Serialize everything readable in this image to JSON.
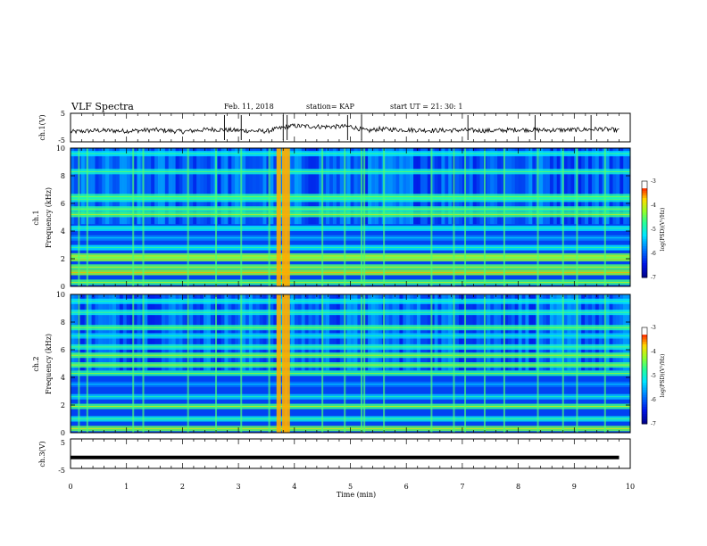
{
  "header": {
    "title": "VLF Spectra",
    "date": "Feb. 11, 2018",
    "station": "station= KAP",
    "start": "start  UT =   21: 30: 1"
  },
  "colors": {
    "low": "#00007f",
    "mid_low": "#0050ff",
    "mid": "#00e5ff",
    "mid_high": "#30ff60",
    "high": "#ffe000",
    "max": "#e00000",
    "top": "#ffffff"
  },
  "chart_data": [
    {
      "type": "line",
      "panel": "ch1-waveform",
      "ylabel": "ch.1(V)",
      "ylim": [
        -5,
        5
      ],
      "yticks": [
        "5",
        "-5"
      ],
      "x": [
        0,
        0.5,
        1,
        1.5,
        2,
        2.5,
        3,
        3.5,
        3.9,
        4,
        4.5,
        5,
        5.3,
        5.5,
        6,
        6.5,
        7,
        7.5,
        8,
        8.5,
        9,
        9.5,
        9.8
      ],
      "values": [
        -1.5,
        -1.0,
        -1.2,
        -0.8,
        -1.4,
        -0.6,
        -1.0,
        -1.3,
        0.5,
        0.6,
        0.3,
        0.4,
        -1.2,
        -0.5,
        -0.8,
        -1.0,
        -0.9,
        -1.1,
        -0.7,
        -0.9,
        -0.8,
        -0.5,
        -1.0
      ],
      "xlim": [
        0,
        10
      ]
    },
    {
      "type": "heatmap",
      "panel": "ch1-spectrogram",
      "ylabel": "ch.1\nFrequency  (kHz)",
      "ylim": [
        0,
        10
      ],
      "xlim": [
        0,
        10
      ],
      "yticks": [
        "0",
        "2",
        "4",
        "6",
        "8",
        "10"
      ],
      "colorbar": {
        "label": "log(PSD)(V²/Hz)",
        "range": [
          -7,
          -3
        ],
        "ticks": [
          "-3",
          "-4",
          "-5",
          "-6",
          "-7"
        ]
      },
      "bands_khz": [
        {
          "f": 0.3,
          "level": 0.6
        },
        {
          "f": 1.0,
          "level": 0.7
        },
        {
          "f": 1.4,
          "level": 0.62
        },
        {
          "f": 2.0,
          "level": 0.68
        },
        {
          "f": 2.2,
          "level": 0.65
        },
        {
          "f": 2.8,
          "level": 0.45
        },
        {
          "f": 3.5,
          "level": 0.32
        },
        {
          "f": 4.2,
          "level": 0.45
        },
        {
          "f": 5.2,
          "level": 0.6
        },
        {
          "f": 5.6,
          "level": 0.55
        },
        {
          "f": 6.3,
          "level": 0.5
        },
        {
          "f": 6.5,
          "level": 0.55
        },
        {
          "f": 8.3,
          "level": 0.5
        },
        {
          "f": 9.6,
          "level": 0.45
        }
      ],
      "burst_minutes": [
        0.15,
        0.3,
        1.12,
        1.3,
        2.1,
        2.6,
        3.05,
        3.55,
        3.72,
        3.82,
        3.88,
        4.5,
        4.9,
        5.2,
        5.25,
        5.6,
        6.45,
        6.85,
        7.05,
        7.4,
        7.75,
        8.35,
        8.8,
        9.05,
        9.55
      ]
    },
    {
      "type": "heatmap",
      "panel": "ch2-spectrogram",
      "ylabel": "ch.2\nFrequency  (kHz)",
      "ylim": [
        0,
        10
      ],
      "xlim": [
        0,
        10
      ],
      "yticks": [
        "0",
        "2",
        "4",
        "6",
        "8",
        "10"
      ],
      "colorbar": {
        "label": "log(PSD)(V²/Hz)",
        "range": [
          -7,
          -3
        ],
        "ticks": [
          "-3",
          "-4",
          "-5",
          "-6",
          "-7"
        ]
      },
      "bands_khz": [
        {
          "f": 0.3,
          "level": 0.65
        },
        {
          "f": 1.0,
          "level": 0.48
        },
        {
          "f": 1.9,
          "level": 0.6
        },
        {
          "f": 2.6,
          "level": 0.4
        },
        {
          "f": 3.5,
          "level": 0.3
        },
        {
          "f": 4.3,
          "level": 0.55
        },
        {
          "f": 4.9,
          "level": 0.6
        },
        {
          "f": 5.6,
          "level": 0.6
        },
        {
          "f": 6.2,
          "level": 0.5
        },
        {
          "f": 7.0,
          "level": 0.42
        },
        {
          "f": 7.6,
          "level": 0.55
        },
        {
          "f": 8.7,
          "level": 0.48
        },
        {
          "f": 9.5,
          "level": 0.45
        }
      ],
      "burst_minutes": [
        0.15,
        0.3,
        1.12,
        1.3,
        2.1,
        2.6,
        3.05,
        3.55,
        3.72,
        3.82,
        3.88,
        4.5,
        4.9,
        5.2,
        5.25,
        5.6,
        6.45,
        6.85,
        7.05,
        7.4,
        7.75,
        8.35,
        8.8,
        9.05,
        9.55
      ]
    },
    {
      "type": "line",
      "panel": "ch3-waveform",
      "ylabel": "ch.3(V)",
      "ylim": [
        -5,
        5
      ],
      "yticks": [
        "5",
        "-5"
      ],
      "x": [
        0,
        9.8
      ],
      "values": [
        -1.3,
        -1.3
      ],
      "xlim": [
        0,
        10
      ]
    }
  ],
  "xaxis": {
    "label": "Time  (min)",
    "ticks": [
      "0",
      "1",
      "2",
      "3",
      "4",
      "5",
      "6",
      "7",
      "8",
      "9",
      "10"
    ]
  }
}
